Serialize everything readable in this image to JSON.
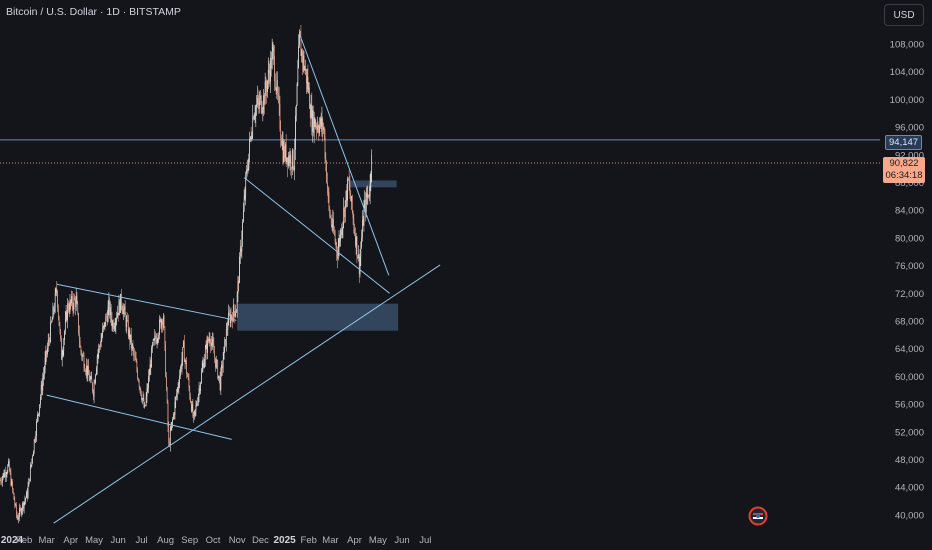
{
  "header": {
    "title": "Bitcoin / U.S. Dollar · 1D · BITSTAMP"
  },
  "currency_button": "USD",
  "price_tags": {
    "level": "94,147",
    "last_price": "90,822",
    "countdown": "06:34:18"
  },
  "colors": {
    "background": "#14151b",
    "candle_up": "#e8e4df",
    "candle_down": "#e8a792",
    "trendline": "#8fc4e6",
    "zone": "#3c5573",
    "price_line": "#f7a88a"
  },
  "chart_data": {
    "type": "candlestick",
    "title": "Bitcoin / U.S. Dollar · 1D · BITSTAMP",
    "y_axis": {
      "position": "right",
      "ticks": [
        40000,
        44000,
        48000,
        52000,
        56000,
        60000,
        64000,
        68000,
        72000,
        76000,
        80000,
        84000,
        88000,
        92000,
        96000,
        100000,
        104000,
        108000
      ],
      "tick_labels": [
        "40,000",
        "44,000",
        "48,000",
        "52,000",
        "56,000",
        "60,000",
        "64,000",
        "68,000",
        "72,000",
        "76,000",
        "80,000",
        "84,000",
        "88,000",
        "92,000",
        "96,000",
        "100,000",
        "104,000",
        "108,000"
      ]
    },
    "x_axis": {
      "labels": [
        "2024",
        "Feb",
        "Mar",
        "Apr",
        "May",
        "Jun",
        "Jul",
        "Aug",
        "Sep",
        "Oct",
        "Nov",
        "Dec",
        "2025",
        "Feb",
        "Mar",
        "Apr",
        "May",
        "Jun",
        "Jul"
      ],
      "bold": [
        "2024",
        "2025"
      ]
    },
    "close_path": [
      [
        "2024-01-01",
        45000
      ],
      [
        "2024-01-12",
        47000
      ],
      [
        "2024-01-23",
        39500
      ],
      [
        "2024-02-05",
        43000
      ],
      [
        "2024-02-15",
        51500
      ],
      [
        "2024-02-28",
        62000
      ],
      [
        "2024-03-05",
        66000
      ],
      [
        "2024-03-14",
        72500
      ],
      [
        "2024-03-20",
        63000
      ],
      [
        "2024-03-28",
        70000
      ],
      [
        "2024-04-08",
        71000
      ],
      [
        "2024-04-13",
        64000
      ],
      [
        "2024-04-30",
        58000
      ],
      [
        "2024-05-05",
        63000
      ],
      [
        "2024-05-20",
        70000
      ],
      [
        "2024-05-25",
        67500
      ],
      [
        "2024-06-05",
        71000
      ],
      [
        "2024-06-25",
        61000
      ],
      [
        "2024-07-05",
        55000
      ],
      [
        "2024-07-15",
        64000
      ],
      [
        "2024-07-29",
        69000
      ],
      [
        "2024-08-05",
        50000
      ],
      [
        "2024-08-24",
        64000
      ],
      [
        "2024-09-06",
        53500
      ],
      [
        "2024-09-20",
        63000
      ],
      [
        "2024-09-27",
        66000
      ],
      [
        "2024-10-10",
        59000
      ],
      [
        "2024-10-20",
        68000
      ],
      [
        "2024-10-31",
        70000
      ],
      [
        "2024-11-12",
        88000
      ],
      [
        "2024-11-22",
        98500
      ],
      [
        "2024-12-05",
        100000
      ],
      [
        "2024-12-17",
        106500
      ],
      [
        "2024-12-30",
        92500
      ],
      [
        "2025-01-13",
        91000
      ],
      [
        "2025-01-20",
        108500
      ],
      [
        "2025-01-31",
        102000
      ],
      [
        "2025-02-05",
        97000
      ],
      [
        "2025-02-20",
        96000
      ],
      [
        "2025-02-27",
        84000
      ],
      [
        "2025-03-10",
        78000
      ],
      [
        "2025-03-24",
        88000
      ],
      [
        "2025-04-07",
        76000
      ],
      [
        "2025-04-13",
        84000
      ],
      [
        "2025-04-21",
        87500
      ],
      [
        "2025-04-23",
        93500
      ]
    ],
    "last_price": 90822,
    "horizontal_level": 94147,
    "trendlines": [
      {
        "from": [
          "2024-03-14",
          73300
        ],
        "to": [
          "2024-10-31",
          68100
        ]
      },
      {
        "from": [
          "2024-03-01",
          57300
        ],
        "to": [
          "2024-10-25",
          50900
        ]
      },
      {
        "from": [
          "2024-03-10",
          38800
        ],
        "to": [
          "2025-07-20",
          76100
        ]
      },
      {
        "from": [
          "2025-01-20",
          109500
        ],
        "to": [
          "2025-05-15",
          74600
        ]
      },
      {
        "from": [
          "2024-11-10",
          88700
        ],
        "to": [
          "2025-05-16",
          72000
        ]
      }
    ],
    "zones": [
      {
        "x": [
          "2024-11-01",
          "2025-05-27"
        ],
        "y": [
          66600,
          70500
        ]
      },
      {
        "x": [
          "2025-03-25",
          "2025-05-25"
        ],
        "y": [
          87300,
          88300
        ]
      }
    ],
    "grid": false
  }
}
